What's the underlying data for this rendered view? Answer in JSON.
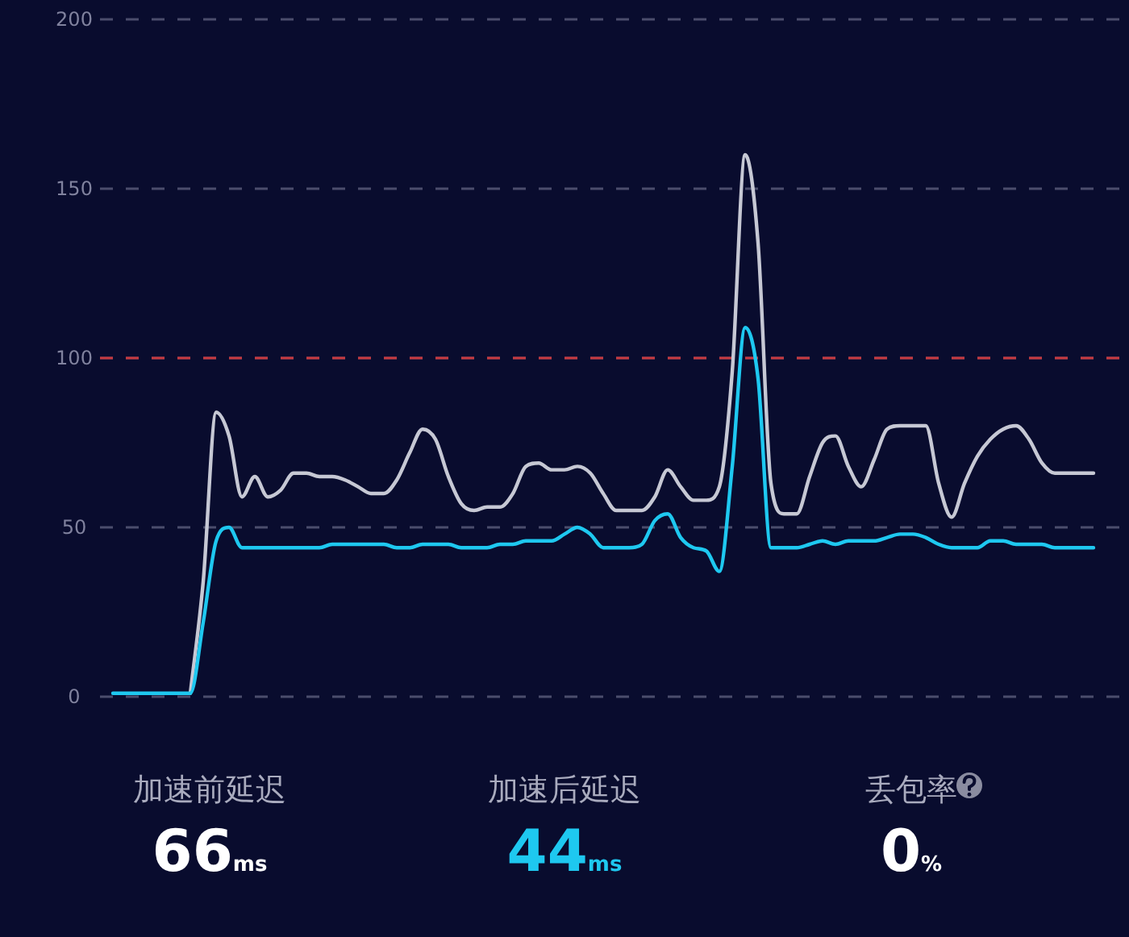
{
  "chart_data": [
    {
      "type": "line",
      "categories": [
        null,
        null,
        null,
        null,
        null,
        null,
        null,
        null,
        null,
        null,
        null,
        null,
        null,
        null,
        null,
        null,
        null,
        null,
        null,
        null,
        null,
        null,
        null,
        null,
        null,
        null,
        null,
        null,
        null,
        null,
        null,
        null,
        null,
        null,
        null,
        null,
        null,
        null,
        null,
        null,
        null,
        null,
        null,
        null,
        null,
        null,
        null,
        null,
        null,
        null,
        null,
        null,
        null,
        null,
        null,
        null,
        null,
        null,
        null,
        null,
        null,
        null,
        null,
        null,
        null,
        null,
        null,
        null,
        null,
        null,
        null,
        null,
        null,
        null,
        null,
        null,
        null
      ],
      "series": [
        {
          "color": "#c6c8d4",
          "values": [
            null,
            null,
            null,
            null,
            null,
            null,
            1,
            34,
            84,
            77,
            59,
            65,
            59,
            61,
            66,
            66,
            65,
            65,
            64,
            62,
            60,
            60,
            64,
            72,
            79,
            76,
            65,
            57,
            55,
            56,
            56,
            60,
            68,
            69,
            67,
            67,
            68,
            66,
            60,
            55,
            55,
            55,
            59,
            67,
            62,
            58,
            58,
            62,
            96,
            160,
            134,
            63,
            54,
            54,
            65,
            75,
            77,
            68,
            62,
            70,
            79,
            80,
            80,
            80,
            63,
            53,
            63,
            71,
            76,
            79,
            80,
            76,
            69,
            66,
            66,
            66,
            66
          ]
        },
        {
          "color": "#1ec8f0",
          "values": [
            1,
            1,
            1,
            1,
            1,
            1,
            1,
            22,
            46,
            50,
            44,
            44,
            44,
            44,
            44,
            44,
            44,
            45,
            45,
            45,
            45,
            45,
            44,
            44,
            45,
            45,
            45,
            44,
            44,
            44,
            45,
            45,
            46,
            46,
            46,
            48,
            50,
            48,
            44,
            44,
            44,
            45,
            52,
            54,
            47,
            44,
            43,
            37,
            68,
            109,
            94,
            44,
            44,
            44,
            45,
            46,
            45,
            46,
            46,
            46,
            47,
            48,
            48,
            47,
            45,
            44,
            44,
            44,
            46,
            46,
            45,
            45,
            45,
            44,
            44,
            44,
            44
          ]
        }
      ],
      "ylim": [
        0,
        200
      ],
      "yticks": [
        0,
        50,
        100,
        150,
        200
      ],
      "grid": "y",
      "tick_labels": "y",
      "ref_lines": [
        {
          "axis": "y",
          "value": 100,
          "color": "#c8393f",
          "line_style": "dashed"
        }
      ]
    },
    {
      "type": "other",
      "annotations": [
        "加速前延迟",
        "66ms",
        "加速后延迟",
        "44ms",
        "丢包率",
        "0%"
      ]
    }
  ]
}
